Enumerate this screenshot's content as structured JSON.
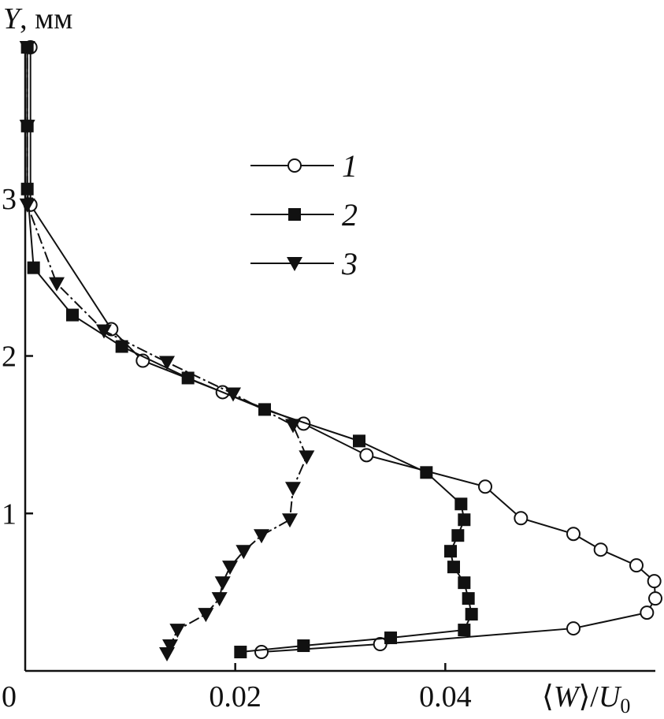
{
  "chart_data": {
    "type": "line",
    "x_axis": {
      "label_parts": [
        "⟨",
        "W",
        "⟩/",
        "U",
        "0"
      ],
      "range": [
        0,
        0.06
      ],
      "ticks": [
        0,
        0.02,
        0.04
      ],
      "tick_labels": [
        "0",
        "0.02",
        "0.04"
      ]
    },
    "y_axis": {
      "label_parts": [
        "Y",
        ", мм"
      ],
      "range": [
        0,
        4
      ],
      "ticks": [
        1,
        2,
        3
      ],
      "tick_labels": [
        "1",
        "2",
        "3"
      ]
    },
    "grid": false,
    "legend": {
      "placement": "top-center",
      "entries": [
        "1",
        "2",
        "3"
      ]
    },
    "series": [
      {
        "name": "1",
        "marker": "open-circle",
        "color": "#111111",
        "points": [
          [
            0.0225,
            0.12
          ],
          [
            0.0338,
            0.17
          ],
          [
            0.0522,
            0.27
          ],
          [
            0.0592,
            0.37
          ],
          [
            0.06,
            0.46
          ],
          [
            0.0599,
            0.57
          ],
          [
            0.0582,
            0.67
          ],
          [
            0.0548,
            0.77
          ],
          [
            0.0522,
            0.87
          ],
          [
            0.0472,
            0.97
          ],
          [
            0.0438,
            1.17
          ],
          [
            0.0325,
            1.37
          ],
          [
            0.0265,
            1.57
          ],
          [
            0.0188,
            1.77
          ],
          [
            0.0112,
            1.97
          ],
          [
            0.0082,
            2.17
          ],
          [
            0.0005,
            2.96
          ],
          [
            0.0005,
            3.96
          ]
        ]
      },
      {
        "name": "2",
        "marker": "filled-square",
        "color": "#111111",
        "points": [
          [
            0.0205,
            0.12
          ],
          [
            0.0265,
            0.16
          ],
          [
            0.0348,
            0.21
          ],
          [
            0.0418,
            0.26
          ],
          [
            0.0425,
            0.36
          ],
          [
            0.0422,
            0.46
          ],
          [
            0.0418,
            0.56
          ],
          [
            0.0408,
            0.66
          ],
          [
            0.0405,
            0.76
          ],
          [
            0.0412,
            0.86
          ],
          [
            0.0418,
            0.96
          ],
          [
            0.0415,
            1.06
          ],
          [
            0.0382,
            1.26
          ],
          [
            0.0318,
            1.46
          ],
          [
            0.0228,
            1.66
          ],
          [
            0.0155,
            1.86
          ],
          [
            0.0092,
            2.06
          ],
          [
            0.0045,
            2.26
          ],
          [
            0.0008,
            2.56
          ],
          [
            0.0002,
            3.06
          ],
          [
            0.0002,
            3.46
          ],
          [
            0.0002,
            3.96
          ]
        ]
      },
      {
        "name": "3",
        "marker": "filled-triangle-down",
        "color": "#111111",
        "points": [
          [
            0.0135,
            0.11
          ],
          [
            0.0138,
            0.16
          ],
          [
            0.0145,
            0.26
          ],
          [
            0.0172,
            0.36
          ],
          [
            0.0185,
            0.46
          ],
          [
            0.0188,
            0.56
          ],
          [
            0.0195,
            0.66
          ],
          [
            0.0208,
            0.76
          ],
          [
            0.0225,
            0.86
          ],
          [
            0.0252,
            0.96
          ],
          [
            0.0255,
            1.16
          ],
          [
            0.0268,
            1.36
          ],
          [
            0.0255,
            1.56
          ],
          [
            0.0198,
            1.76
          ],
          [
            0.0135,
            1.96
          ],
          [
            0.0075,
            2.16
          ],
          [
            0.003,
            2.46
          ],
          [
            0.0002,
            2.96
          ],
          [
            0.0002,
            3.46
          ],
          [
            0.0002,
            3.96
          ]
        ]
      }
    ]
  }
}
